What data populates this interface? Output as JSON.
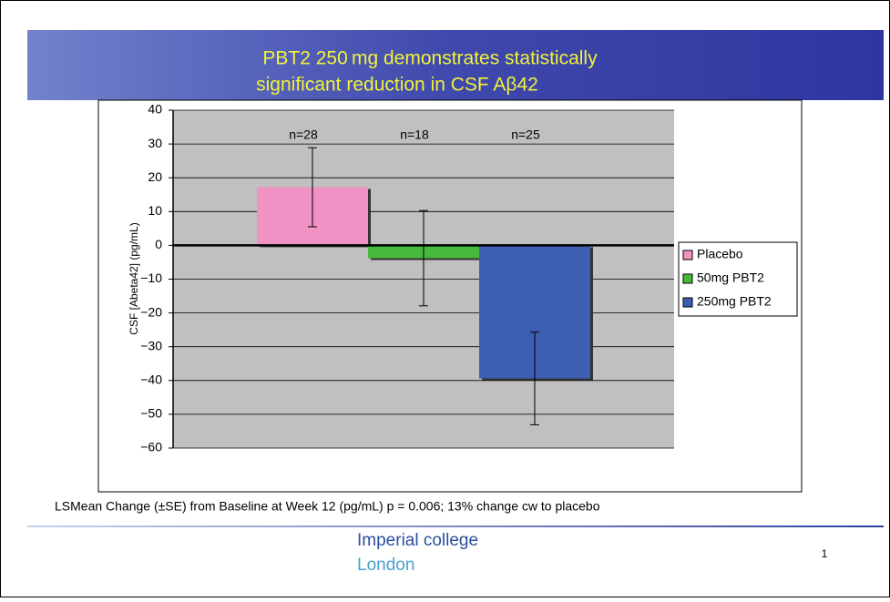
{
  "chart_data": {
    "type": "bar",
    "title": [
      "PBT2 250 mg demonstrates statistically",
      "significant reduction in CSF Aβ42"
    ],
    "y_label": "CSF [Abeta42] (pg/mL)",
    "categories": [
      null
    ],
    "series": [
      {
        "name": "Placebo",
        "color": "#f092c4",
        "values": [
          17.2
        ],
        "errors": [
          11.7
        ],
        "n_label": "n=28"
      },
      {
        "name": "50mg PBT2",
        "color": "#46b83c",
        "values": [
          -3.8
        ],
        "errors": [
          14.1
        ],
        "n_label": "n=18"
      },
      {
        "name": "250mg PBT2",
        "color": "#3d5fb2",
        "values": [
          -39.4
        ],
        "errors": [
          13.7
        ],
        "n_label": "n=25"
      }
    ],
    "ylim": [
      -60,
      40
    ],
    "yticks": [
      {
        "value": -60,
        "label": "−60"
      },
      {
        "value": -50,
        "label": "−50"
      },
      {
        "value": -40,
        "label": "−40"
      },
      {
        "value": -30,
        "label": "−30"
      },
      {
        "value": -20,
        "label": "−20"
      },
      {
        "value": -10,
        "label": "−10"
      },
      0,
      10,
      20,
      30,
      40
    ],
    "grid": true,
    "legend": "right"
  },
  "footer": {
    "note": "LSMean Change (±SE) from Baseline at Week 12 (pg/mL) p = 0.006; 13% change cw to placebo",
    "institution": [
      "Imperial college",
      "London"
    ],
    "page": "1"
  }
}
